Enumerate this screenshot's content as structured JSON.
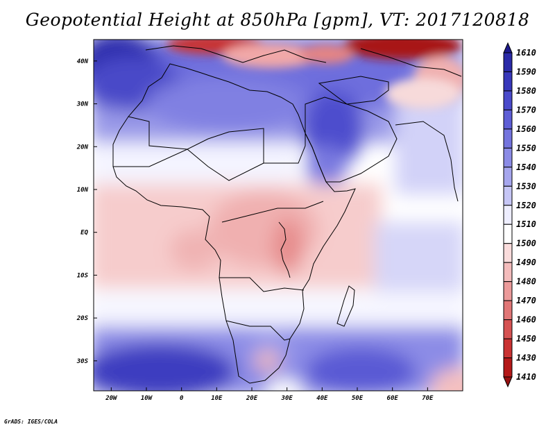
{
  "title": "Geopotential Height at 850hPa [gpm], VT: 2017120818",
  "credit": "GrADS: IGES/COLA",
  "map": {
    "lon_range": [
      -25,
      80
    ],
    "lat_range": [
      -37,
      45
    ],
    "lon_ticks": [
      {
        "value": -20,
        "label": "20W"
      },
      {
        "value": -10,
        "label": "10W"
      },
      {
        "value": 0,
        "label": "0"
      },
      {
        "value": 10,
        "label": "10E"
      },
      {
        "value": 20,
        "label": "20E"
      },
      {
        "value": 30,
        "label": "30E"
      },
      {
        "value": 40,
        "label": "40E"
      },
      {
        "value": 50,
        "label": "50E"
      },
      {
        "value": 60,
        "label": "60E"
      },
      {
        "value": 70,
        "label": "70E"
      }
    ],
    "lat_ticks": [
      {
        "value": 40,
        "label": "40N"
      },
      {
        "value": 30,
        "label": "30N"
      },
      {
        "value": 20,
        "label": "20N"
      },
      {
        "value": 10,
        "label": "10N"
      },
      {
        "value": 0,
        "label": "EQ"
      },
      {
        "value": -10,
        "label": "10S"
      },
      {
        "value": -20,
        "label": "20S"
      },
      {
        "value": -30,
        "label": "30S"
      }
    ]
  },
  "colorbar": {
    "labels": [
      "1610",
      "1590",
      "1580",
      "1570",
      "1560",
      "1550",
      "1540",
      "1530",
      "1520",
      "1510",
      "1500",
      "1490",
      "1480",
      "1470",
      "1460",
      "1450",
      "1430",
      "1410"
    ],
    "colors": [
      "#1d1a8c",
      "#2a2aa8",
      "#3838bb",
      "#4a4acb",
      "#5e5ed6",
      "#7474de",
      "#8b8be6",
      "#a6a6ee",
      "#c6c6f6",
      "#eeeeff",
      "#ffffff",
      "#fadcdc",
      "#f4bcbc",
      "#ec9a9a",
      "#e17676",
      "#d65252",
      "#ca3232",
      "#b41818",
      "#961010"
    ]
  }
}
